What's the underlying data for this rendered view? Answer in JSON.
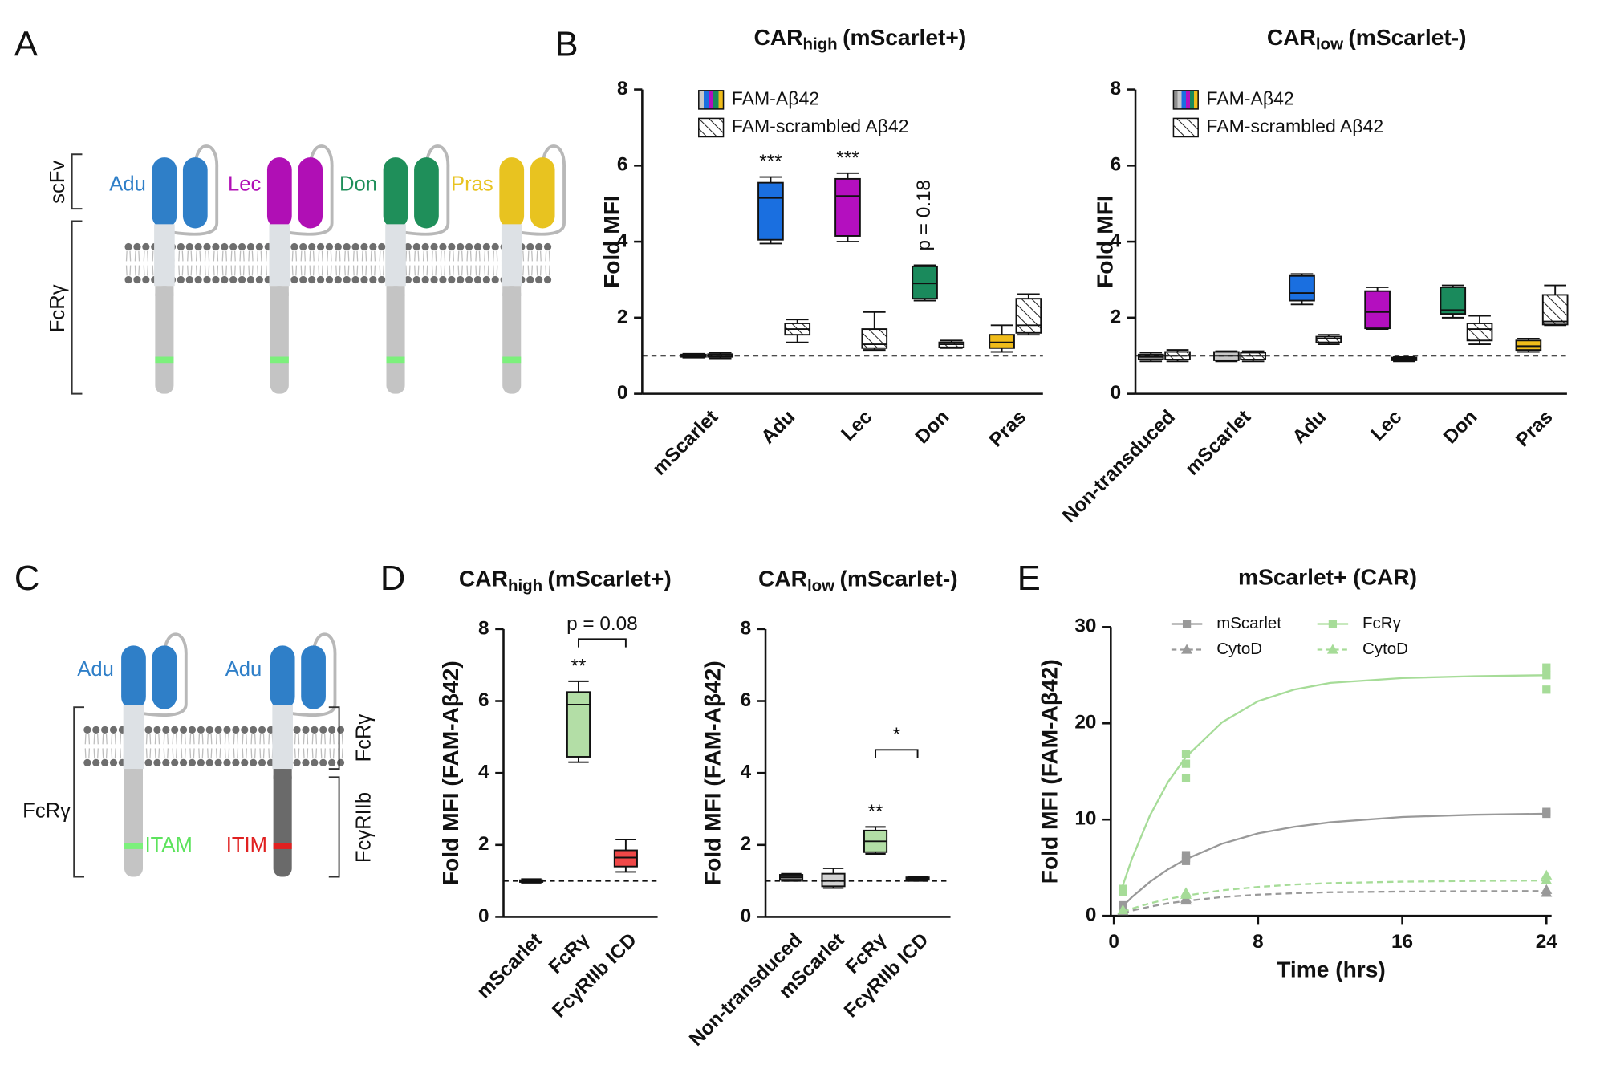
{
  "panels": {
    "a": "A",
    "b": "B",
    "c": "C",
    "d": "D",
    "e": "E"
  },
  "diagram_a": {
    "scfv": "scFv",
    "fcr": "FcRγ",
    "receptors": [
      "Adu",
      "Lec",
      "Don",
      "Pras"
    ],
    "colors": [
      "#2f7fc8",
      "#b00fb5",
      "#1f8f5a",
      "#e8c320"
    ]
  },
  "diagram_c": {
    "receptors": [
      "Adu",
      "Adu"
    ],
    "left": "FcRγ",
    "right_top": "FcRγ",
    "right_bottom": "FcγRIIb",
    "itam": "ITAM",
    "itim": "ITIM"
  },
  "chart_data": [
    {
      "type": "box",
      "title": {
        "text": "CAR",
        "subscript": "high",
        "suffix": "(mScarlet+)"
      },
      "ylabel": "Fold MFI",
      "categories": [
        "mScarlet",
        "Adu",
        "Lec",
        "Don",
        "Pras"
      ],
      "ylim": [
        0,
        8
      ],
      "yticks": [
        0,
        2,
        4,
        6,
        8
      ],
      "refline": 1,
      "series": [
        {
          "name": "FAM-Aβ42",
          "colors": [
            "#c8c8c8",
            "#1a6fe0",
            "#b40fbf",
            "#1a8a5c",
            "#f0bc1a"
          ],
          "values": [
            [
              0.95,
              0.97,
              1.0,
              1.03,
              1.05
            ],
            [
              3.95,
              4.05,
              5.15,
              5.55,
              5.7
            ],
            [
              4.0,
              4.15,
              5.2,
              5.65,
              5.8
            ],
            [
              2.45,
              2.5,
              2.9,
              3.35,
              3.38
            ],
            [
              1.1,
              1.2,
              1.35,
              1.55,
              1.8
            ]
          ]
        },
        {
          "name": "FAM-scrambled Aβ42",
          "color": "#ffffff",
          "pattern": "hatch",
          "values": [
            [
              0.93,
              0.97,
              1.0,
              1.04,
              1.08
            ],
            [
              1.35,
              1.55,
              1.7,
              1.85,
              1.95
            ],
            [
              1.15,
              1.2,
              1.3,
              1.7,
              2.15
            ],
            [
              1.2,
              1.22,
              1.3,
              1.35,
              1.4
            ],
            [
              1.55,
              1.6,
              1.8,
              2.5,
              2.62
            ]
          ]
        }
      ],
      "annotations": [
        {
          "text": "***",
          "category": 1
        },
        {
          "text": "***",
          "category": 2
        },
        {
          "text": "p = 0.18",
          "category": 3,
          "vertical": true
        }
      ]
    },
    {
      "type": "box",
      "title": {
        "text": "CAR",
        "subscript": "low",
        "suffix": "(mScarlet-)"
      },
      "ylabel": "Fold MFI",
      "categories": [
        "Non-transduced",
        "mScarlet",
        "Adu",
        "Lec",
        "Don",
        "Pras"
      ],
      "ylim": [
        0,
        8
      ],
      "yticks": [
        0,
        2,
        4,
        6,
        8
      ],
      "refline": 1,
      "series": [
        {
          "name": "FAM-Aβ42",
          "colors": [
            "#8e8e8e",
            "#c8c8c8",
            "#1a6fe0",
            "#b40fbf",
            "#1a8a5c",
            "#f0bc1a"
          ],
          "values": [
            [
              0.85,
              0.9,
              0.97,
              1.03,
              1.08
            ],
            [
              0.85,
              0.88,
              1.0,
              1.1,
              1.12
            ],
            [
              2.35,
              2.45,
              2.65,
              3.1,
              3.15
            ],
            [
              1.7,
              1.72,
              2.15,
              2.7,
              2.8
            ],
            [
              2.0,
              2.1,
              2.2,
              2.8,
              2.85
            ],
            [
              1.1,
              1.15,
              1.25,
              1.4,
              1.45
            ]
          ]
        },
        {
          "name": "FAM-scrambled Aβ42",
          "color": "#ffffff",
          "pattern": "hatch",
          "values": [
            [
              0.85,
              0.9,
              1.0,
              1.1,
              1.15
            ],
            [
              0.85,
              0.9,
              1.0,
              1.08,
              1.12
            ],
            [
              1.3,
              1.35,
              1.45,
              1.5,
              1.55
            ],
            [
              0.85,
              0.88,
              0.92,
              0.95,
              0.97
            ],
            [
              1.3,
              1.4,
              1.7,
              1.85,
              2.05
            ],
            [
              1.8,
              1.82,
              1.9,
              2.6,
              2.85
            ]
          ]
        }
      ],
      "annotations": []
    },
    {
      "type": "box",
      "title": {
        "text": "CAR",
        "subscript": "high",
        "suffix": "(mScarlet+)"
      },
      "ylabel": "Fold MFI (FAM-Aβ42)",
      "categories": [
        "mScarlet",
        "FcRγ",
        "FcγRIIb ICD"
      ],
      "ylim": [
        0,
        8
      ],
      "yticks": [
        0,
        2,
        4,
        6,
        8
      ],
      "refline": 1,
      "series": [
        {
          "colors": [
            "#cfcfcf",
            "#b3dea6",
            "#f04848"
          ],
          "values": [
            [
              0.95,
              0.97,
              1.0,
              1.02,
              1.05
            ],
            [
              4.3,
              4.45,
              5.9,
              6.25,
              6.55
            ],
            [
              1.25,
              1.4,
              1.65,
              1.85,
              2.15
            ]
          ]
        }
      ],
      "annotations": [
        {
          "text": "**",
          "category": 1
        },
        {
          "text": "p = 0.08",
          "categories": [
            1,
            2
          ]
        }
      ]
    },
    {
      "type": "box",
      "title": {
        "text": "CAR",
        "subscript": "low",
        "suffix": "(mScarlet-)"
      },
      "ylabel": "Fold MFI (FAM-Aβ42)",
      "categories": [
        "Non-transduced",
        "mScarlet",
        "FcRγ",
        "FcγRIIb ICD"
      ],
      "ylim": [
        0,
        8
      ],
      "yticks": [
        0,
        2,
        4,
        6,
        8
      ],
      "refline": 1,
      "series": [
        {
          "colors": [
            "#8e8e8e",
            "#d2d2d2",
            "#b3dea6",
            "#f04848"
          ],
          "values": [
            [
              1.0,
              1.03,
              1.1,
              1.17,
              1.2
            ],
            [
              0.8,
              0.85,
              1.0,
              1.2,
              1.35
            ],
            [
              1.75,
              1.8,
              2.1,
              2.4,
              2.5
            ],
            [
              1.0,
              1.03,
              1.07,
              1.1,
              1.12
            ]
          ]
        }
      ],
      "annotations": [
        {
          "text": "**",
          "category": 2
        },
        {
          "text": "*",
          "categories": [
            2,
            3
          ]
        }
      ]
    },
    {
      "type": "line",
      "title": "mScarlet+ (CAR)",
      "xlabel": "Time (hrs)",
      "ylabel": "Fold MFI (FAM-Aβ42)",
      "xlim": [
        0,
        24
      ],
      "xticks": [
        0,
        8,
        16,
        24
      ],
      "ylim": [
        0,
        30
      ],
      "yticks": [
        0,
        10,
        20,
        30
      ],
      "series": [
        {
          "name": "mScarlet",
          "color": "#999999",
          "marker": "square",
          "dash": false,
          "x": [
            0.5,
            0.5,
            4,
            4,
            4,
            24,
            24
          ],
          "values": [
            0.8,
            1.1,
            5.7,
            6.0,
            6.3,
            10.6,
            10.8
          ],
          "fit_x": [
            0.5,
            1,
            2,
            3,
            4,
            6,
            8,
            10,
            12,
            16,
            20,
            24
          ],
          "fit_values": [
            1.02,
            1.94,
            3.53,
            4.83,
            5.89,
            7.49,
            8.57,
            9.25,
            9.72,
            10.27,
            10.5,
            10.61
          ]
        },
        {
          "name": "CytoD",
          "color": "#999999",
          "marker": "triangle",
          "dash": true,
          "x": [
            0.5,
            4,
            4,
            24,
            24
          ],
          "values": [
            0.5,
            1.6,
            1.8,
            2.4,
            2.7
          ],
          "fit_x": [
            0.5,
            1,
            2,
            3,
            4,
            6,
            8,
            10,
            12,
            16,
            20,
            24
          ],
          "fit_values": [
            0.3,
            0.55,
            0.95,
            1.3,
            1.55,
            1.95,
            2.2,
            2.35,
            2.45,
            2.52,
            2.56,
            2.58
          ]
        },
        {
          "name": "FcRγ",
          "color": "#a6dc98",
          "marker": "square",
          "dash": false,
          "x": [
            0.5,
            0.5,
            4,
            4,
            4,
            24,
            24,
            24
          ],
          "values": [
            2.5,
            2.8,
            14.3,
            15.8,
            16.8,
            23.5,
            25.0,
            25.8
          ],
          "fit_x": [
            0.5,
            1,
            2,
            3,
            4,
            6,
            8,
            10,
            12,
            16,
            20,
            24
          ],
          "fit_values": [
            3.17,
            5.92,
            10.42,
            13.88,
            16.51,
            20.1,
            22.3,
            23.5,
            24.2,
            24.7,
            24.9,
            25.0
          ]
        },
        {
          "name": "CytoD",
          "color": "#a6dc98",
          "marker": "triangle",
          "dash": true,
          "x": [
            0.5,
            4,
            4,
            24,
            24
          ],
          "values": [
            0.6,
            2.2,
            2.4,
            3.7,
            4.2
          ],
          "fit_x": [
            0.5,
            1,
            2,
            3,
            4,
            6,
            8,
            10,
            12,
            16,
            20,
            24
          ],
          "fit_values": [
            0.4,
            0.75,
            1.3,
            1.75,
            2.1,
            2.65,
            3.0,
            3.25,
            3.4,
            3.55,
            3.63,
            3.67
          ]
        }
      ]
    }
  ]
}
